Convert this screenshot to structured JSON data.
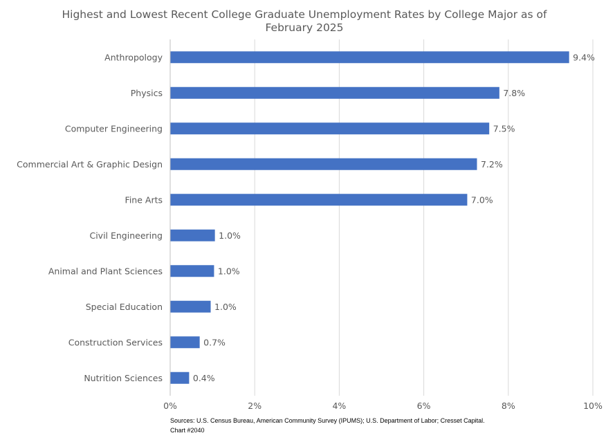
{
  "chart_data": {
    "type": "bar",
    "orientation": "horizontal",
    "title": "Highest and Lowest Recent College Graduate Unemployment Rates by College Major as of February 2025",
    "categories": [
      "Anthropology",
      "Physics",
      "Computer Engineering",
      "Commercial Art & Graphic Design",
      "Fine Arts",
      "Civil Engineering",
      "Animal and Plant Sciences",
      "Special Education",
      "Construction Services",
      "Nutrition Sciences"
    ],
    "values": [
      9.43,
      7.78,
      7.54,
      7.25,
      7.02,
      1.05,
      1.03,
      0.95,
      0.69,
      0.44
    ],
    "data_labels": [
      "9.4%",
      "7.8%",
      "7.5%",
      "7.2%",
      "7.0%",
      "1.0%",
      "1.0%",
      "1.0%",
      "0.7%",
      "0.4%"
    ],
    "xlim": [
      0,
      10
    ],
    "x_ticks": [
      0,
      2,
      4,
      6,
      8,
      10
    ],
    "x_tick_labels": [
      "0%",
      "2%",
      "4%",
      "6%",
      "8%",
      "10%"
    ],
    "xlabel": "",
    "ylabel": "",
    "grid": "vertical",
    "legend": "none",
    "bar_color": "#4472C4"
  },
  "footer": {
    "sources": "Sources: U.S. Census Bureau, American Community Survey (IPUMS); U.S. Department of Labor; Cresset Capital.",
    "chart_id": "Chart #2040"
  }
}
